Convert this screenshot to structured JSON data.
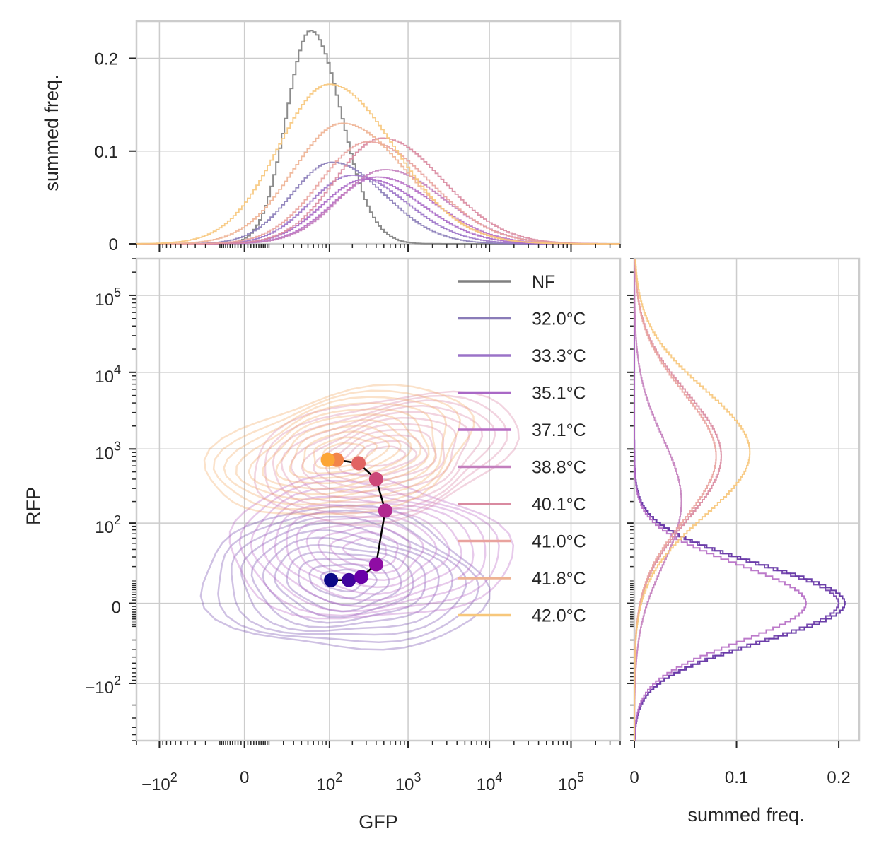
{
  "chart_data": [
    {
      "type": "line",
      "panel": "top-marginal",
      "ylabel": "summed freq.",
      "xscale": "symlog",
      "ylim": [
        0,
        0.24
      ],
      "yticks": [
        {
          "v": 0,
          "label": "0"
        },
        {
          "v": 0.1,
          "label": "0.1"
        },
        {
          "v": 0.2,
          "label": "0.2"
        }
      ],
      "series": [
        {
          "name": "NF",
          "color": "#808080",
          "peak_x": 55,
          "peak_y": 0.23
        },
        {
          "name": "32.0°C",
          "color": "#8a7cb8",
          "peak_x": 110,
          "peak_y": 0.088
        },
        {
          "name": "33.3°C",
          "color": "#9b73c8",
          "peak_x": 200,
          "peak_y": 0.074
        },
        {
          "name": "35.1°C",
          "color": "#a968c6",
          "peak_x": 300,
          "peak_y": 0.07
        },
        {
          "name": "37.1°C",
          "color": "#b56cc4",
          "peak_x": 420,
          "peak_y": 0.072
        },
        {
          "name": "38.8°C",
          "color": "#c37ebd",
          "peak_x": 520,
          "peak_y": 0.08
        },
        {
          "name": "40.1°C",
          "color": "#d98aa0",
          "peak_x": 480,
          "peak_y": 0.114
        },
        {
          "name": "41.0°C",
          "color": "#e9a39e",
          "peak_x": 320,
          "peak_y": 0.11
        },
        {
          "name": "41.8°C",
          "color": "#eeb394",
          "peak_x": 150,
          "peak_y": 0.13
        },
        {
          "name": "42.0°C",
          "color": "#f7c77b",
          "peak_x": 100,
          "peak_y": 0.172
        }
      ]
    },
    {
      "type": "scatter",
      "panel": "main-joint",
      "xlabel": "GFP",
      "ylabel": "RFP",
      "xscale": "symlog",
      "yscale": "symlog",
      "xticks": [
        {
          "v": -100,
          "base": "−10",
          "exp": "2"
        },
        {
          "v": 0,
          "base": "0",
          "exp": ""
        },
        {
          "v": 100,
          "base": "10",
          "exp": "2"
        },
        {
          "v": 1000,
          "base": "10",
          "exp": "3"
        },
        {
          "v": 10000,
          "base": "10",
          "exp": "4"
        },
        {
          "v": 100000,
          "base": "10",
          "exp": "5"
        }
      ],
      "yticks": [
        {
          "v": -100,
          "base": "−10",
          "exp": "2"
        },
        {
          "v": 0,
          "base": "0",
          "exp": ""
        },
        {
          "v": 100,
          "base": "10",
          "exp": "2"
        },
        {
          "v": 1000,
          "base": "10",
          "exp": "3"
        },
        {
          "v": 10000,
          "base": "10",
          "exp": "4"
        },
        {
          "v": 100000,
          "base": "10",
          "exp": "5"
        }
      ],
      "contours": [
        {
          "group": "low",
          "color": "#6a3fa8",
          "center_x": 150,
          "center_y": 10
        },
        {
          "group": "low",
          "color": "#b35ac0",
          "center_x": 300,
          "center_y": 40
        },
        {
          "group": "high",
          "color": "#d87aa0",
          "center_x": 500,
          "center_y": 800
        },
        {
          "group": "high",
          "color": "#f4a65a",
          "center_x": 150,
          "center_y": 900
        }
      ],
      "points": [
        {
          "x": 105,
          "y": 10,
          "color": "#0d0887"
        },
        {
          "x": 180,
          "y": 10,
          "color": "#41049d"
        },
        {
          "x": 260,
          "y": 12,
          "color": "#6a00a8"
        },
        {
          "x": 400,
          "y": 22,
          "color": "#8f0da4"
        },
        {
          "x": 520,
          "y": 150,
          "color": "#b12a90"
        },
        {
          "x": 400,
          "y": 400,
          "color": "#cc4778"
        },
        {
          "x": 240,
          "y": 650,
          "color": "#e16462"
        },
        {
          "x": 125,
          "y": 720,
          "color": "#f2844b"
        },
        {
          "x": 95,
          "y": 720,
          "color": "#fca636"
        }
      ]
    },
    {
      "type": "line",
      "panel": "right-marginal",
      "xlabel": "summed freq.",
      "yscale": "symlog",
      "xlim": [
        0,
        0.22
      ],
      "xticks": [
        {
          "v": 0,
          "label": "0"
        },
        {
          "v": 0.1,
          "label": "0.1"
        },
        {
          "v": 0.2,
          "label": "0.2"
        }
      ],
      "series": [
        {
          "name": "32.0°C",
          "color": "#5a2a9e",
          "peak_y": 0,
          "peak_x": 0.206
        },
        {
          "name": "33.3°C",
          "color": "#6b3aa8",
          "peak_y": 0,
          "peak_x": 0.2
        },
        {
          "name": "37.1°C",
          "color": "#b56cc4",
          "peak_y": 0,
          "peak_x": 0.168
        },
        {
          "name": "38.8°C",
          "color": "#c37ebd",
          "peak_y": 200,
          "peak_x": 0.046
        },
        {
          "name": "40.1°C",
          "color": "#d98aa0",
          "peak_y": 800,
          "peak_x": 0.085
        },
        {
          "name": "41.0°C",
          "color": "#e9a39e",
          "peak_y": 800,
          "peak_x": 0.08
        },
        {
          "name": "42.0°C",
          "color": "#f7c77b",
          "peak_y": 900,
          "peak_x": 0.113
        }
      ]
    }
  ],
  "legend": {
    "placement": "upper-right",
    "entries": [
      {
        "label": "NF",
        "color": "#808080"
      },
      {
        "label": "32.0°C",
        "color": "#8a7cb8"
      },
      {
        "label": "33.3°C",
        "color": "#9b73c8"
      },
      {
        "label": "35.1°C",
        "color": "#a968c6"
      },
      {
        "label": "37.1°C",
        "color": "#b56cc4"
      },
      {
        "label": "38.8°C",
        "color": "#c37ebd"
      },
      {
        "label": "40.1°C",
        "color": "#d98aa0"
      },
      {
        "label": "41.0°C",
        "color": "#e9a39e"
      },
      {
        "label": "41.8°C",
        "color": "#eeb394"
      },
      {
        "label": "42.0°C",
        "color": "#f7c77b"
      }
    ]
  }
}
